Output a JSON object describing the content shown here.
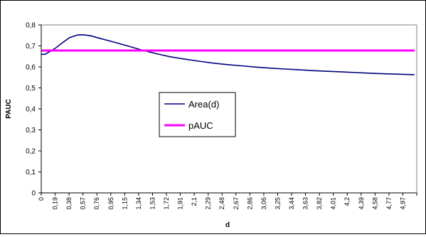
{
  "chart_data": {
    "type": "line",
    "title": "",
    "xlabel": "d",
    "ylabel": "PAUC",
    "ylim": [
      0,
      0.8
    ],
    "yticks": [
      "0",
      "0,1",
      "0,2",
      "0,3",
      "0,4",
      "0,5",
      "0,6",
      "0,7",
      "0,8"
    ],
    "x_tick_labels": [
      "0",
      "0,19",
      "0,38",
      "0,57",
      "0,76",
      "0,95",
      "1,15",
      "1,34",
      "1,53",
      "1,72",
      "1,91",
      "2,1",
      "2,29",
      "2,48",
      "2,67",
      "2,86",
      "3,06",
      "3,25",
      "3,44",
      "3,63",
      "3,82",
      "4,01",
      "4,2",
      "4,39",
      "4,58",
      "4,77",
      "4,97"
    ],
    "xlim": [
      0,
      5.0
    ],
    "grid": false,
    "legend_position": "left-center",
    "series": [
      {
        "name": "Area(d)",
        "color": "#000080",
        "x": [
          0,
          0.05,
          0.1,
          0.19,
          0.3,
          0.38,
          0.48,
          0.57,
          0.66,
          0.76,
          0.95,
          1.15,
          1.34,
          1.53,
          1.72,
          1.91,
          2.1,
          2.29,
          2.48,
          2.67,
          2.86,
          3.06,
          3.25,
          3.44,
          3.63,
          3.82,
          4.01,
          4.2,
          4.39,
          4.58,
          4.77,
          4.97
        ],
        "values": [
          0.66,
          0.66,
          0.67,
          0.69,
          0.72,
          0.74,
          0.752,
          0.753,
          0.748,
          0.738,
          0.72,
          0.7,
          0.68,
          0.663,
          0.648,
          0.637,
          0.627,
          0.618,
          0.611,
          0.605,
          0.599,
          0.594,
          0.59,
          0.586,
          0.582,
          0.579,
          0.576,
          0.573,
          0.57,
          0.567,
          0.565,
          0.563
        ]
      },
      {
        "name": "pAUC",
        "color": "#ff00ff",
        "x": [
          0,
          4.97
        ],
        "values": [
          0.678,
          0.678
        ]
      }
    ]
  }
}
